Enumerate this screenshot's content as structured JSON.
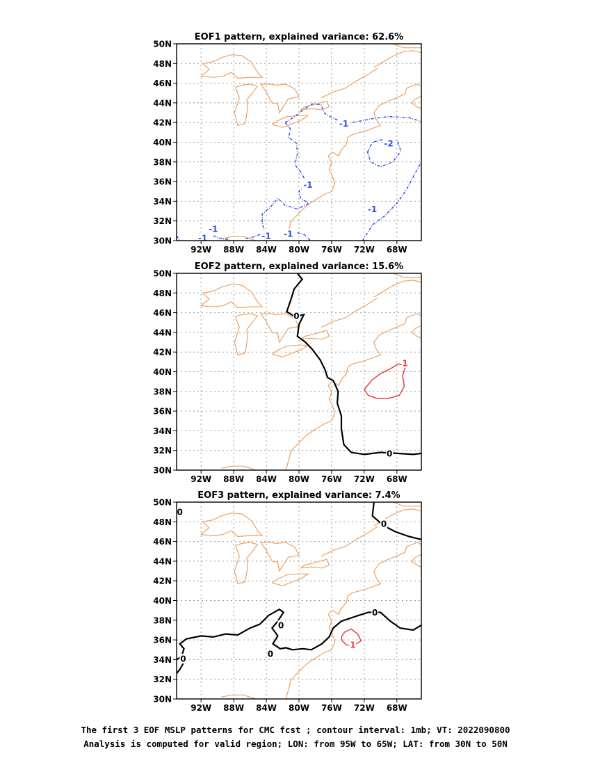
{
  "chart_data": [
    {
      "type": "contour",
      "title": "EOF1 pattern, explained variance: 62.6%",
      "xticks": [
        "92W",
        "88W",
        "84W",
        "80W",
        "76W",
        "72W",
        "68W"
      ],
      "yticks": [
        "50N",
        "48N",
        "46N",
        "44N",
        "42N",
        "40N",
        "38N",
        "36N",
        "34N",
        "32N",
        "30N"
      ],
      "xlim": [
        -95,
        -65
      ],
      "ylim": [
        30,
        50
      ],
      "grid": true,
      "contours": [
        {
          "level": "-1",
          "color": "#3050e0",
          "style": "dashed",
          "label_at": [
            -74.5,
            41.9
          ]
        },
        {
          "level": "-1",
          "color": "#3050e0",
          "style": "dashed",
          "label_at": [
            -78.9,
            35.7
          ]
        },
        {
          "level": "-1",
          "color": "#3050e0",
          "style": "dashed",
          "label_at": [
            -90.5,
            31.2
          ]
        },
        {
          "level": "-1",
          "color": "#3050e0",
          "style": "dashed",
          "label_at": [
            -91.8,
            30.3
          ]
        },
        {
          "level": "-1",
          "color": "#3050e0",
          "style": "dashed",
          "label_at": [
            -81.3,
            30.7
          ]
        },
        {
          "level": "-1",
          "color": "#3050e0",
          "style": "dashed",
          "label_at": [
            -84.0,
            30.5
          ]
        },
        {
          "level": "-1",
          "color": "#3050e0",
          "style": "dashed",
          "label_at": [
            -71.0,
            33.2
          ]
        },
        {
          "level": "-2",
          "color": "#3050e0",
          "style": "dashed",
          "label_at": [
            -69.0,
            39.9
          ]
        }
      ]
    },
    {
      "type": "contour",
      "title": "EOF2 pattern, explained variance: 15.6%",
      "xticks": [
        "92W",
        "88W",
        "84W",
        "80W",
        "76W",
        "72W",
        "68W"
      ],
      "yticks": [
        "50N",
        "48N",
        "46N",
        "44N",
        "42N",
        "40N",
        "38N",
        "36N",
        "34N",
        "32N",
        "30N"
      ],
      "xlim": [
        -95,
        -65
      ],
      "ylim": [
        30,
        50
      ],
      "grid": true,
      "contours": [
        {
          "level": "0",
          "color": "#000000",
          "style": "solid",
          "label_at": [
            -80.3,
            45.7
          ]
        },
        {
          "level": "0",
          "color": "#000000",
          "style": "solid",
          "label_at": [
            -68.9,
            31.7
          ]
        },
        {
          "level": "1",
          "color": "#e84040",
          "style": "solid",
          "label_at": [
            -67.0,
            40.9
          ]
        }
      ]
    },
    {
      "type": "contour",
      "title": "EOF3 pattern, explained variance: 7.4%",
      "xticks": [
        "92W",
        "88W",
        "84W",
        "80W",
        "76W",
        "72W",
        "68W"
      ],
      "yticks": [
        "50N",
        "48N",
        "46N",
        "44N",
        "42N",
        "40N",
        "38N",
        "36N",
        "34N",
        "32N",
        "30N"
      ],
      "xlim": [
        -95,
        -65
      ],
      "ylim": [
        30,
        50
      ],
      "grid": true,
      "contours": [
        {
          "level": "0",
          "color": "#000000",
          "style": "solid",
          "label_at": [
            -94.6,
            49.0
          ]
        },
        {
          "level": "0",
          "color": "#000000",
          "style": "solid",
          "label_at": [
            -69.6,
            47.8
          ]
        },
        {
          "level": "0",
          "color": "#000000",
          "style": "solid",
          "label_at": [
            -70.7,
            38.8
          ]
        },
        {
          "level": "0",
          "color": "#000000",
          "style": "solid",
          "label_at": [
            -82.2,
            37.5
          ]
        },
        {
          "level": "0",
          "color": "#000000",
          "style": "solid",
          "label_at": [
            -83.5,
            34.6
          ]
        },
        {
          "level": "0",
          "color": "#000000",
          "style": "solid",
          "label_at": [
            -94.2,
            34.1
          ]
        },
        {
          "level": "1",
          "color": "#e84040",
          "style": "solid",
          "label_at": [
            -73.4,
            35.5
          ]
        }
      ]
    }
  ],
  "map": {
    "coastline_color": "#f0a060",
    "grid_color": "#999999"
  },
  "caption": {
    "line1": "The first 3 EOF MSLP patterns for CMC fcst ; contour interval: 1mb; VT: 2022090800",
    "line2": "Analysis is computed for valid region; LON: from 95W to 65W; LAT: from 30N to 50N"
  }
}
